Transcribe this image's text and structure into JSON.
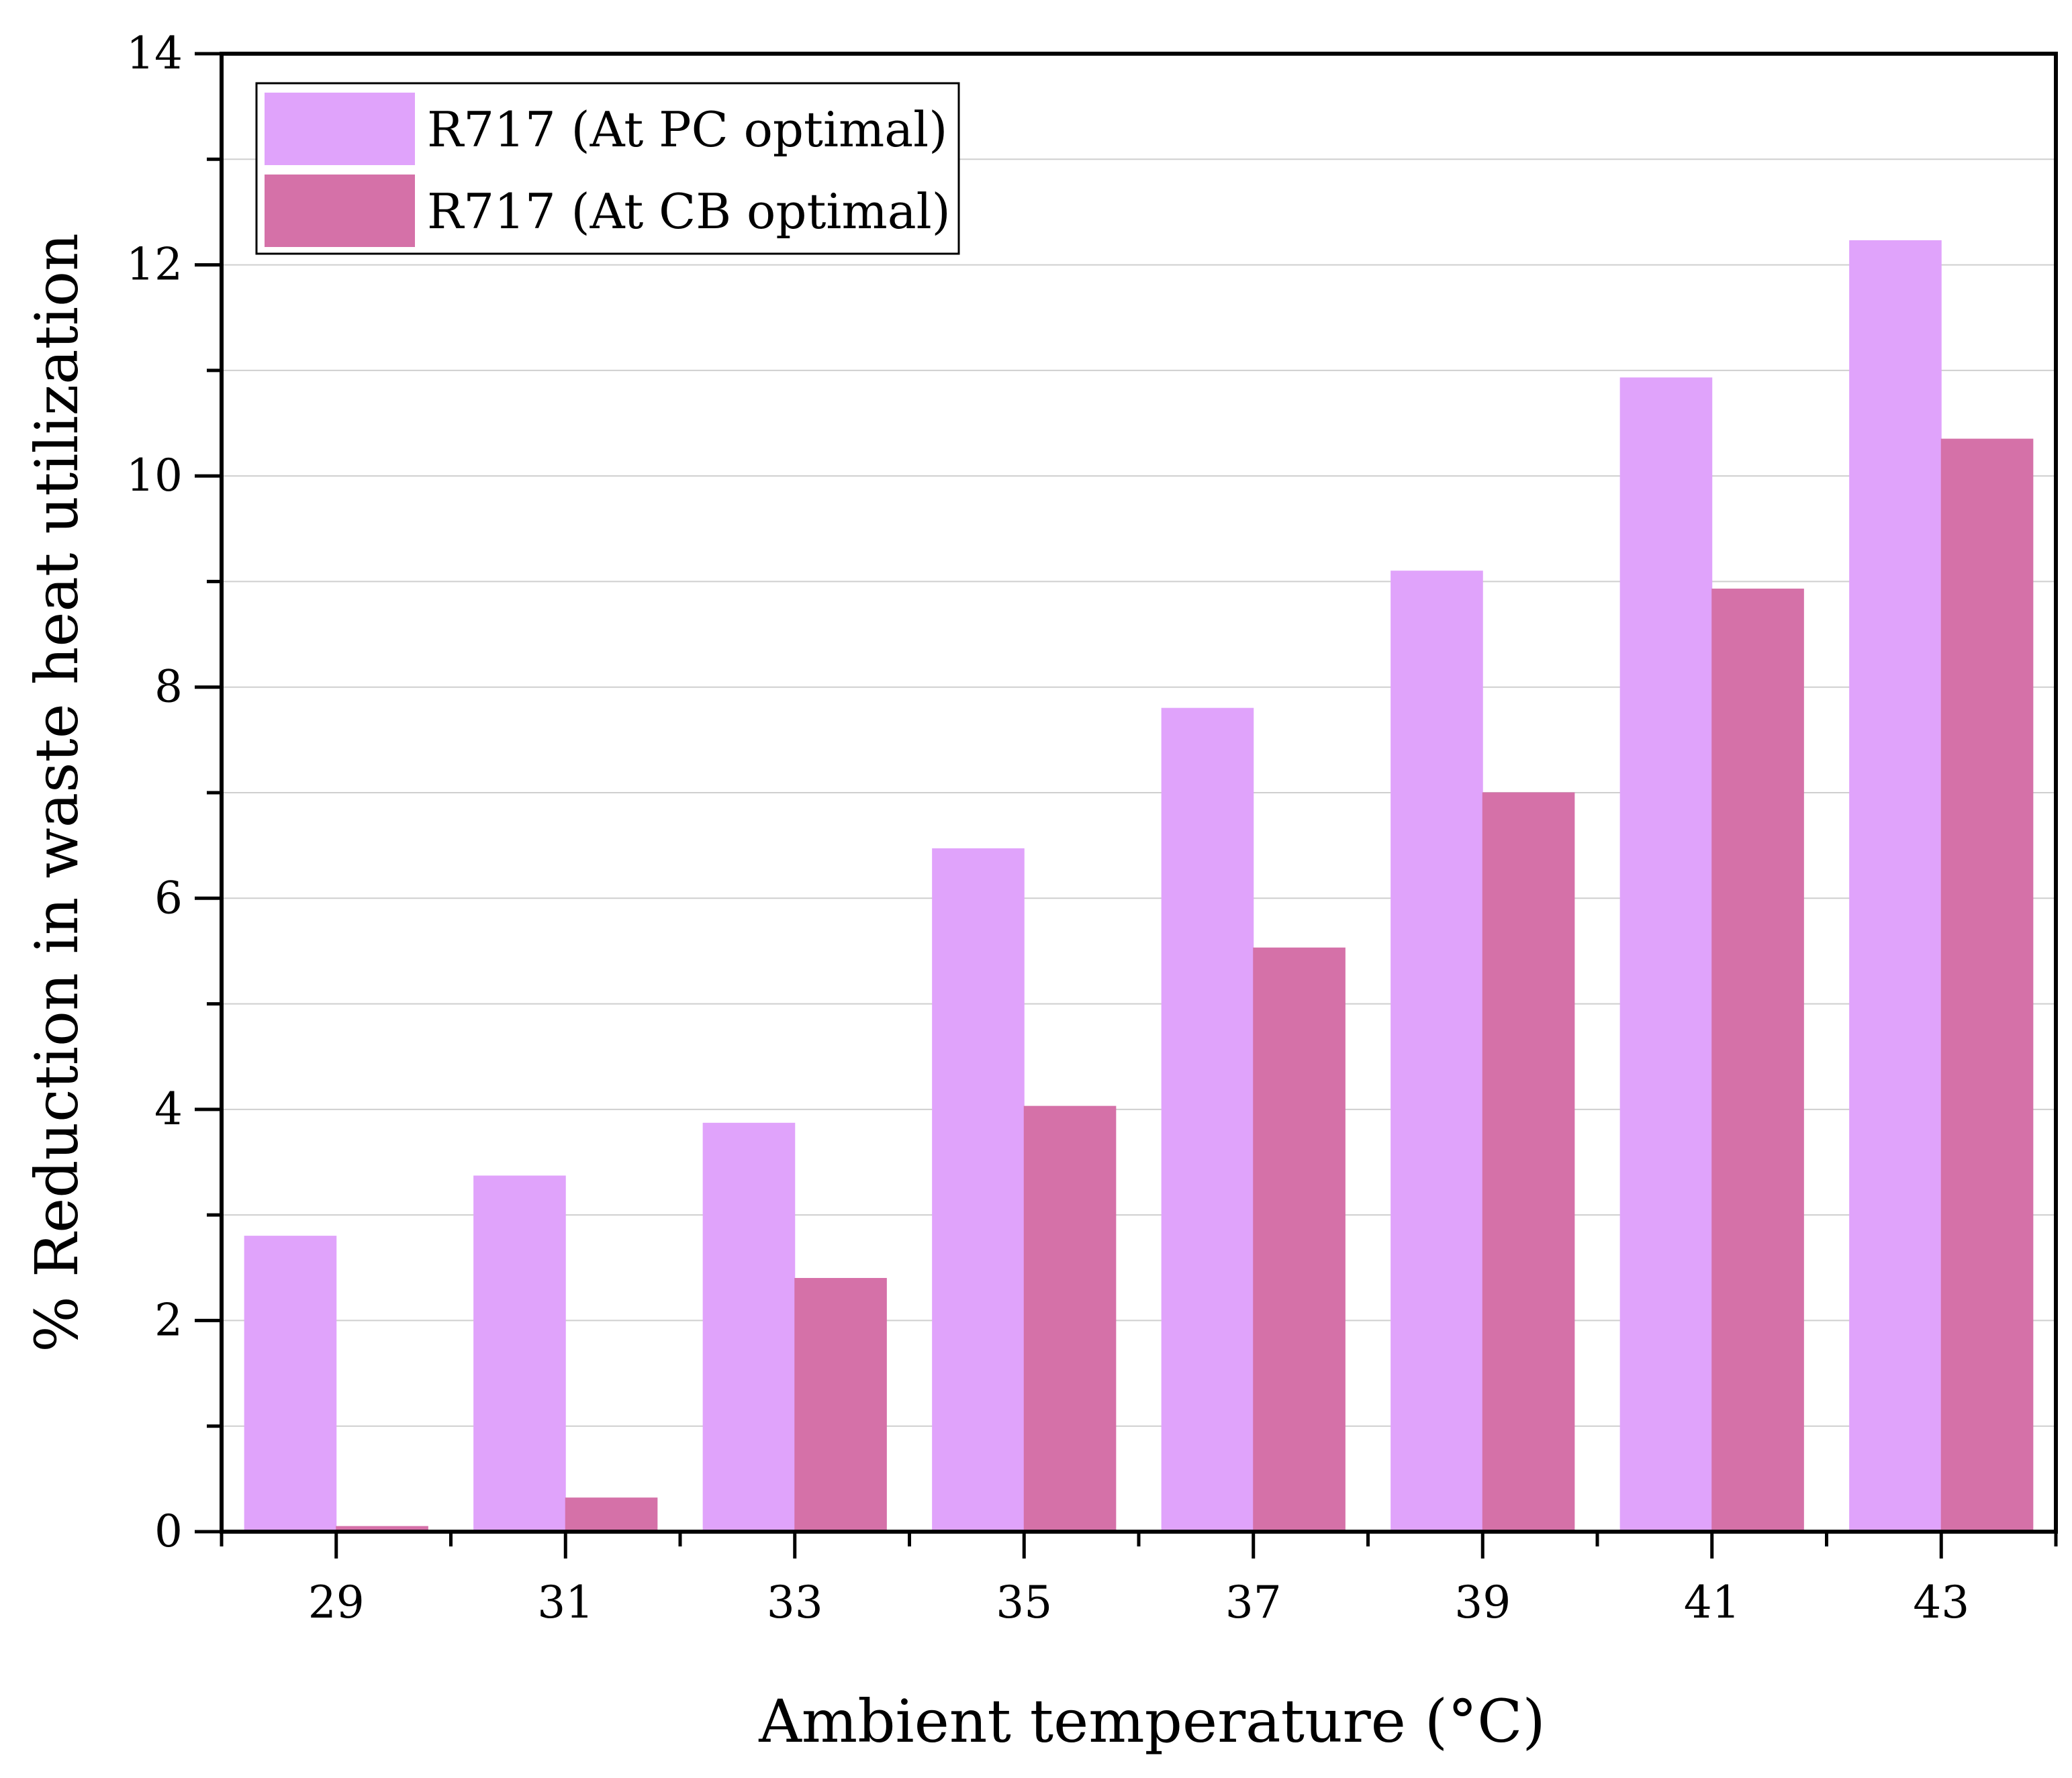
{
  "chart_data": {
    "type": "bar",
    "title": "",
    "xlabel": "Ambient temperature (°C)",
    "ylabel": "% Reduction in waste heat utilization",
    "categories": [
      "29",
      "31",
      "33",
      "35",
      "37",
      "39",
      "41",
      "43"
    ],
    "series": [
      {
        "name": "R717 (At PC optimal)",
        "color": "#e0a3fb",
        "values": [
          2.8,
          3.37,
          3.87,
          6.47,
          7.8,
          9.1,
          10.93,
          12.23
        ]
      },
      {
        "name": "R717 (At CB optimal)",
        "color": "#d571a8",
        "values": [
          0.05,
          0.32,
          2.4,
          4.03,
          5.53,
          7.0,
          8.93,
          10.35
        ]
      }
    ],
    "ylim": [
      0,
      14
    ],
    "yticks": [
      "0",
      "2",
      "4",
      "6",
      "8",
      "10",
      "12",
      "14"
    ],
    "grid": true,
    "legend_position": "top-left"
  }
}
